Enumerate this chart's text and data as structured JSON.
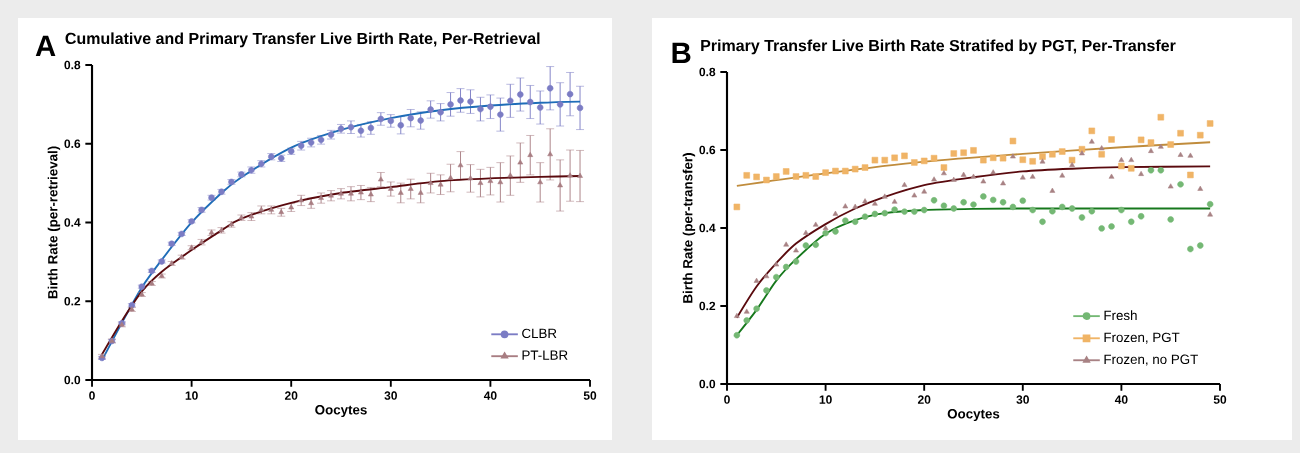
{
  "chart_data": [
    {
      "type": "scatter",
      "title": "Cumulative and Primary Transfer Live Birth Rate, Per-Retrieval",
      "xlabel": "Oocytes",
      "ylabel": "Birth Rate (per-retrieval)",
      "annotations": [
        "A"
      ],
      "xlim": [
        0,
        50
      ],
      "ylim": [
        0,
        0.8
      ],
      "xticks": [
        0,
        10,
        20,
        30,
        40,
        50
      ],
      "yticks": [
        {
          "value": 0,
          "label": "0.0"
        },
        {
          "value": 0.2,
          "label": "0.2"
        },
        {
          "value": 0.4,
          "label": "0.4"
        },
        {
          "value": 0.6,
          "label": "0.6"
        },
        {
          "value": 0.8,
          "label": "0.8"
        }
      ],
      "grid": false,
      "legend": "bottom right",
      "series": [
        {
          "name": "CLBR",
          "marker": "circle",
          "color": "#7b7cc4",
          "x": [
            1,
            2,
            3,
            4,
            5,
            6,
            7,
            8,
            9,
            10,
            11,
            12,
            13,
            14,
            15,
            16,
            17,
            18,
            19,
            20,
            21,
            22,
            23,
            24,
            25,
            26,
            27,
            28,
            29,
            30,
            31,
            32,
            33,
            34,
            35,
            36,
            37,
            38,
            39,
            40,
            41,
            42,
            43,
            44,
            45,
            46,
            47,
            48,
            49
          ],
          "values": [
            0.056,
            0.099,
            0.144,
            0.19,
            0.237,
            0.277,
            0.301,
            0.346,
            0.371,
            0.403,
            0.432,
            0.463,
            0.478,
            0.503,
            0.522,
            0.533,
            0.549,
            0.567,
            0.563,
            0.581,
            0.595,
            0.603,
            0.61,
            0.623,
            0.638,
            0.642,
            0.633,
            0.64,
            0.663,
            0.658,
            0.647,
            0.665,
            0.659,
            0.687,
            0.68,
            0.7,
            0.71,
            0.707,
            0.688,
            0.694,
            0.674,
            0.709,
            0.725,
            0.706,
            0.692,
            0.741,
            0.7,
            0.726,
            0.691
          ],
          "errors": [
            0.004,
            0.004,
            0.004,
            0.004,
            0.004,
            0.004,
            0.004,
            0.004,
            0.004,
            0.004,
            0.006,
            0.006,
            0.006,
            0.006,
            0.006,
            0.008,
            0.008,
            0.008,
            0.008,
            0.008,
            0.011,
            0.011,
            0.011,
            0.011,
            0.011,
            0.016,
            0.016,
            0.016,
            0.016,
            0.016,
            0.022,
            0.022,
            0.022,
            0.022,
            0.022,
            0.03,
            0.03,
            0.03,
            0.03,
            0.03,
            0.042,
            0.042,
            0.042,
            0.042,
            0.042,
            0.055,
            0.055,
            0.055,
            0.055
          ]
        },
        {
          "type": "line",
          "color": "#1f6db8",
          "x": [
            1,
            3,
            5,
            7,
            10,
            13,
            15,
            20,
            25,
            30,
            35,
            40,
            45,
            49
          ],
          "values": [
            0.05,
            0.145,
            0.235,
            0.305,
            0.4,
            0.475,
            0.515,
            0.59,
            0.635,
            0.665,
            0.685,
            0.697,
            0.704,
            0.707
          ]
        },
        {
          "name": "PT-LBR",
          "marker": "triangle",
          "color": "#a87d82",
          "x": [
            1,
            2,
            3,
            4,
            5,
            6,
            7,
            8,
            9,
            10,
            11,
            12,
            13,
            14,
            15,
            16,
            17,
            18,
            19,
            20,
            21,
            22,
            23,
            24,
            25,
            26,
            27,
            28,
            29,
            30,
            31,
            32,
            33,
            34,
            35,
            36,
            37,
            38,
            39,
            40,
            41,
            42,
            43,
            44,
            45,
            46,
            47,
            48,
            49
          ],
          "values": [
            0.06,
            0.099,
            0.14,
            0.179,
            0.217,
            0.245,
            0.264,
            0.296,
            0.312,
            0.336,
            0.35,
            0.374,
            0.38,
            0.395,
            0.412,
            0.415,
            0.432,
            0.432,
            0.426,
            0.438,
            0.456,
            0.449,
            0.462,
            0.468,
            0.473,
            0.473,
            0.476,
            0.471,
            0.509,
            0.485,
            0.475,
            0.485,
            0.475,
            0.5,
            0.496,
            0.513,
            0.545,
            0.512,
            0.5,
            0.505,
            0.502,
            0.519,
            0.552,
            0.571,
            0.502,
            0.573,
            0.494,
            0.519,
            0.518
          ],
          "errors": [
            0.005,
            0.005,
            0.005,
            0.005,
            0.005,
            0.005,
            0.005,
            0.005,
            0.005,
            0.005,
            0.007,
            0.007,
            0.007,
            0.007,
            0.007,
            0.01,
            0.01,
            0.01,
            0.01,
            0.01,
            0.013,
            0.013,
            0.013,
            0.013,
            0.013,
            0.018,
            0.018,
            0.018,
            0.018,
            0.018,
            0.025,
            0.025,
            0.025,
            0.025,
            0.025,
            0.035,
            0.035,
            0.035,
            0.035,
            0.035,
            0.05,
            0.05,
            0.05,
            0.05,
            0.05,
            0.065,
            0.065,
            0.065,
            0.065
          ]
        },
        {
          "type": "line",
          "color": "#5a0a0e",
          "x": [
            1,
            3,
            5,
            7,
            10,
            13,
            15,
            20,
            25,
            30,
            35,
            40,
            45,
            49
          ],
          "values": [
            0.065,
            0.15,
            0.225,
            0.275,
            0.33,
            0.38,
            0.41,
            0.45,
            0.475,
            0.49,
            0.505,
            0.512,
            0.516,
            0.518
          ]
        }
      ]
    },
    {
      "type": "scatter",
      "title": "Primary Transfer Live Birth Rate Stratifed by PGT, Per-Transfer",
      "xlabel": "Oocytes",
      "ylabel": "Birth Rate (per-transfer)",
      "annotations": [
        "B"
      ],
      "xlim": [
        0,
        50
      ],
      "ylim": [
        0,
        0.8
      ],
      "xticks": [
        0,
        10,
        20,
        30,
        40,
        50
      ],
      "yticks": [
        {
          "value": 0,
          "label": "0.0"
        },
        {
          "value": 0.2,
          "label": "0.2"
        },
        {
          "value": 0.4,
          "label": "0.4"
        },
        {
          "value": 0.6,
          "label": "0.6"
        },
        {
          "value": 0.8,
          "label": "0.8"
        }
      ],
      "grid": false,
      "legend": "bottom right",
      "series": [
        {
          "name": "Fresh",
          "marker": "circle",
          "color": "#74b874",
          "x": [
            1,
            2,
            3,
            4,
            5,
            6,
            7,
            8,
            9,
            10,
            11,
            12,
            13,
            14,
            15,
            16,
            17,
            18,
            19,
            20,
            21,
            22,
            23,
            24,
            25,
            26,
            27,
            28,
            29,
            30,
            31,
            32,
            33,
            34,
            35,
            36,
            37,
            38,
            39,
            40,
            41,
            42,
            43,
            44,
            45,
            46,
            47,
            48,
            49
          ],
          "values": [
            0.125,
            0.163,
            0.193,
            0.24,
            0.274,
            0.3,
            0.314,
            0.355,
            0.357,
            0.387,
            0.391,
            0.419,
            0.416,
            0.429,
            0.436,
            0.438,
            0.447,
            0.442,
            0.442,
            0.446,
            0.471,
            0.457,
            0.45,
            0.466,
            0.46,
            0.481,
            0.472,
            0.466,
            0.454,
            0.47,
            0.446,
            0.416,
            0.443,
            0.454,
            0.45,
            0.427,
            0.443,
            0.399,
            0.404,
            0.446,
            0.416,
            0.43,
            0.548,
            0.548,
            0.422,
            0.512,
            0.346,
            0.355,
            0.461
          ]
        },
        {
          "type": "line",
          "color": "#16781c",
          "x": [
            1,
            3,
            5,
            7,
            10,
            13,
            16,
            20,
            25,
            30,
            40,
            49
          ],
          "values": [
            0.125,
            0.19,
            0.265,
            0.32,
            0.385,
            0.42,
            0.438,
            0.446,
            0.449,
            0.45,
            0.45,
            0.45
          ]
        },
        {
          "name": "Frozen, PGT",
          "marker": "square",
          "color": "#f0b466",
          "x": [
            1,
            2,
            3,
            4,
            5,
            6,
            7,
            8,
            9,
            10,
            11,
            12,
            13,
            14,
            15,
            16,
            17,
            18,
            19,
            20,
            21,
            22,
            23,
            24,
            25,
            26,
            27,
            28,
            29,
            30,
            31,
            32,
            33,
            34,
            35,
            36,
            37,
            38,
            39,
            40,
            41,
            42,
            43,
            44,
            45,
            46,
            47,
            48,
            49
          ],
          "values": [
            0.454,
            0.535,
            0.531,
            0.523,
            0.532,
            0.545,
            0.532,
            0.535,
            0.532,
            0.542,
            0.546,
            0.546,
            0.551,
            0.555,
            0.574,
            0.574,
            0.58,
            0.585,
            0.568,
            0.572,
            0.579,
            0.555,
            0.591,
            0.593,
            0.599,
            0.574,
            0.58,
            0.579,
            0.623,
            0.575,
            0.571,
            0.583,
            0.589,
            0.596,
            0.574,
            0.602,
            0.649,
            0.589,
            0.627,
            0.559,
            0.553,
            0.626,
            0.619,
            0.684,
            0.614,
            0.643,
            0.536,
            0.638,
            0.668
          ]
        },
        {
          "type": "line",
          "color": "#c08c3c",
          "x": [
            1,
            10,
            20,
            30,
            40,
            49
          ],
          "values": [
            0.508,
            0.54,
            0.57,
            0.59,
            0.607,
            0.62
          ]
        },
        {
          "name": "Frozen, no PGT",
          "marker": "triangle",
          "color": "#a88284",
          "x": [
            1,
            2,
            3,
            4,
            5,
            6,
            7,
            8,
            9,
            10,
            11,
            12,
            13,
            14,
            15,
            16,
            17,
            18,
            19,
            20,
            21,
            22,
            23,
            24,
            25,
            26,
            27,
            28,
            29,
            30,
            31,
            32,
            33,
            34,
            35,
            36,
            37,
            38,
            39,
            40,
            41,
            42,
            43,
            44,
            45,
            46,
            47,
            48,
            49
          ],
          "values": [
            0.174,
            0.185,
            0.264,
            0.276,
            0.306,
            0.357,
            0.342,
            0.387,
            0.408,
            0.399,
            0.436,
            0.455,
            0.454,
            0.468,
            0.462,
            0.48,
            0.467,
            0.51,
            0.483,
            0.493,
            0.524,
            0.54,
            0.523,
            0.536,
            0.531,
            0.519,
            0.542,
            0.514,
            0.583,
            0.529,
            0.531,
            0.57,
            0.495,
            0.534,
            0.561,
            0.591,
            0.621,
            0.604,
            0.531,
            0.574,
            0.574,
            0.538,
            0.597,
            0.608,
            0.506,
            0.587,
            0.585,
            0.5,
            0.434
          ]
        },
        {
          "type": "line",
          "color": "#5a0a0e",
          "x": [
            1,
            3,
            5,
            7,
            10,
            13,
            16,
            20,
            25,
            30,
            35,
            40,
            49
          ],
          "values": [
            0.17,
            0.25,
            0.31,
            0.36,
            0.41,
            0.45,
            0.48,
            0.51,
            0.53,
            0.545,
            0.552,
            0.556,
            0.558
          ]
        }
      ]
    }
  ]
}
